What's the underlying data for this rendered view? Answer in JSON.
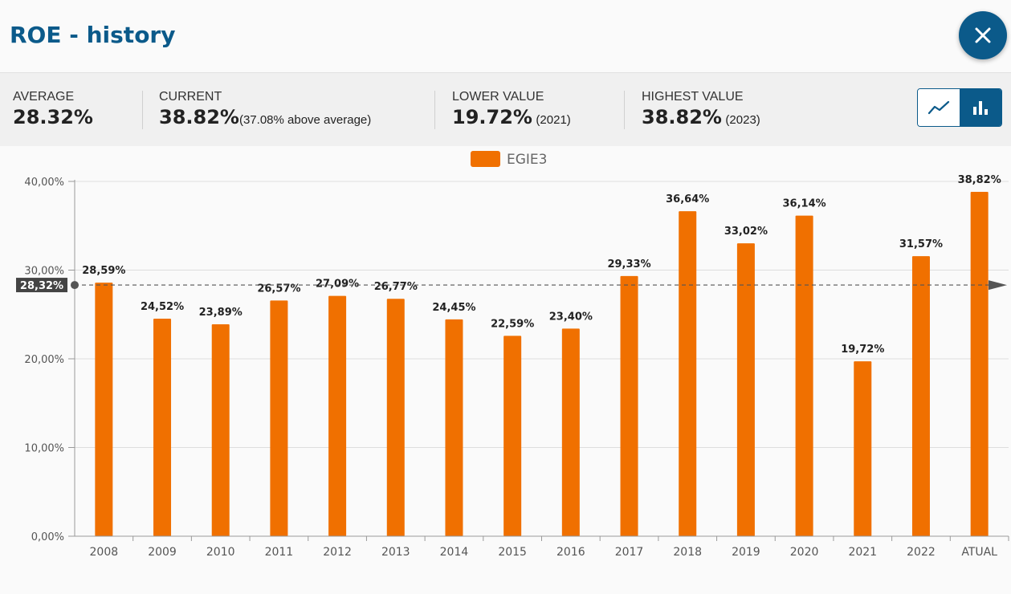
{
  "header": {
    "title": "ROE - history",
    "close_icon": "close-icon"
  },
  "stats": {
    "average": {
      "label": "AVERAGE",
      "value": "28.32%"
    },
    "current": {
      "label": "CURRENT",
      "value": "38.82%",
      "note": "(37.08% above average)"
    },
    "lower": {
      "label": "LOWER VALUE",
      "value": "19.72%",
      "note": "(2021)"
    },
    "highest": {
      "label": "HIGHEST VALUE",
      "value": "38.82%",
      "note": "(2023)"
    }
  },
  "view_toggle": {
    "line_icon": "line-chart-icon",
    "bar_icon": "bar-chart-icon",
    "selected": "bar"
  },
  "colors": {
    "brand": "#0b5a8a",
    "bar": "#f07000",
    "average_tag": "#444444"
  },
  "chart_data": {
    "type": "bar",
    "title": "",
    "xlabel": "",
    "ylabel": "",
    "legend": [
      "EGIE3"
    ],
    "legend_position": "top-center",
    "categories": [
      "2008",
      "2009",
      "2010",
      "2011",
      "2012",
      "2013",
      "2014",
      "2015",
      "2016",
      "2017",
      "2018",
      "2019",
      "2020",
      "2021",
      "2022",
      "ATUAL"
    ],
    "series": [
      {
        "name": "EGIE3",
        "values": [
          28.59,
          24.52,
          23.89,
          26.57,
          27.09,
          26.77,
          24.45,
          22.59,
          23.4,
          29.33,
          36.64,
          33.02,
          36.14,
          19.72,
          31.57,
          38.82
        ],
        "labels": [
          "28,59%",
          "24,52%",
          "23,89%",
          "26,57%",
          "27,09%",
          "26,77%",
          "24,45%",
          "22,59%",
          "23,40%",
          "29,33%",
          "36,64%",
          "33,02%",
          "36,14%",
          "19,72%",
          "31,57%",
          "38,82%"
        ]
      }
    ],
    "ylim": [
      0,
      40
    ],
    "yticks": [
      0,
      10,
      20,
      30,
      40
    ],
    "ytick_labels": [
      "0,00%",
      "10,00%",
      "20,00%",
      "30,00%",
      "40,00%"
    ],
    "grid": true,
    "average_line": {
      "value": 28.32,
      "label": "28,32%"
    }
  }
}
